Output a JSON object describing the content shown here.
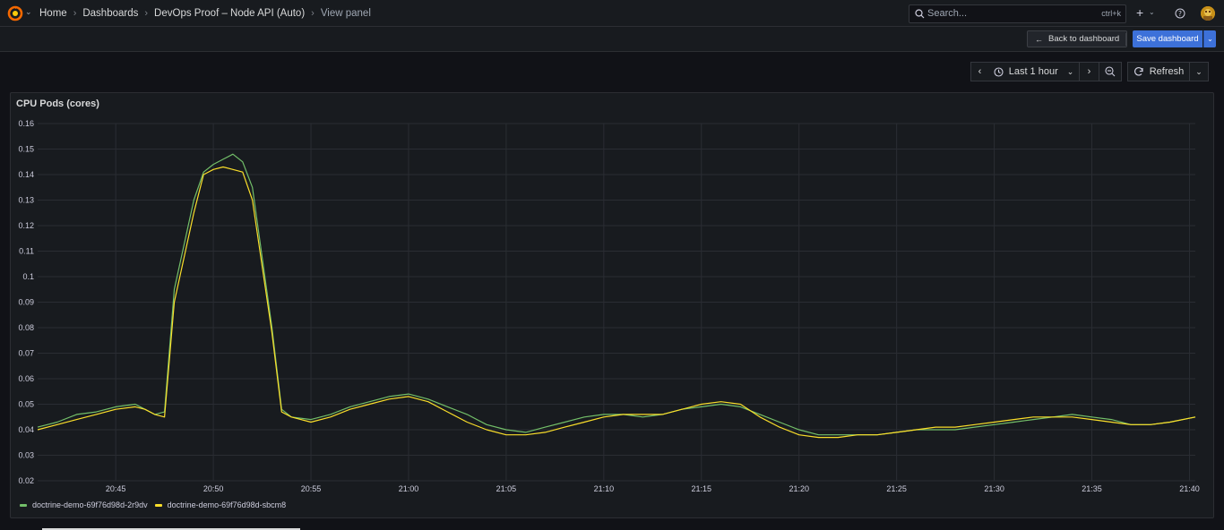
{
  "header": {
    "breadcrumbs": [
      {
        "label": "Home"
      },
      {
        "label": "Dashboards"
      },
      {
        "label": "DevOps Proof – Node API (Auto)"
      },
      {
        "label": "View panel"
      }
    ],
    "search_placeholder": "Search...",
    "search_shortcut": "ctrl+k",
    "add_label": "+"
  },
  "toolbar": {
    "back_label": "Back to dashboard",
    "save_label": "Save dashboard"
  },
  "timepicker": {
    "range_label": "Last 1 hour",
    "refresh_label": "Refresh"
  },
  "panel": {
    "title": "CPU Pods (cores)"
  },
  "colors": {
    "series_green": "#73bf69",
    "series_yellow": "#fade2a",
    "accent_blue": "#3d71d9"
  },
  "chart_data": {
    "type": "line",
    "title": "CPU Pods (cores)",
    "xlabel": "",
    "ylabel": "",
    "ylim": [
      0.02,
      0.16
    ],
    "y_ticks": [
      "0.02",
      "0.03",
      "0.04",
      "0.05",
      "0.06",
      "0.07",
      "0.08",
      "0.09",
      "0.1",
      "0.11",
      "0.12",
      "0.13",
      "0.14",
      "0.15",
      "0.16"
    ],
    "x_ticks": [
      "20:45",
      "20:50",
      "20:55",
      "21:00",
      "21:05",
      "21:10",
      "21:15",
      "21:20",
      "21:25",
      "21:30",
      "21:35",
      "21:40"
    ],
    "x_tick_minutes": [
      45,
      50,
      55,
      60,
      65,
      70,
      75,
      80,
      85,
      90,
      95,
      100
    ],
    "xlim_minutes": [
      41,
      100.3
    ],
    "x_unit_note": "minutes past 20:00",
    "grid": true,
    "legend_position": "bottom-left",
    "series": [
      {
        "name": "doctrine-demo-69f76d98d-2r9dv",
        "color": "#73bf69",
        "x": [
          41,
          41.5,
          42,
          43,
          44,
          45,
          46,
          46.5,
          47,
          47.5,
          48,
          49,
          49.5,
          50,
          50.5,
          51,
          51.5,
          52,
          53,
          53.5,
          54,
          55,
          56,
          57,
          58,
          59,
          60,
          61,
          62,
          63,
          64,
          65,
          66,
          67,
          68,
          69,
          70,
          71,
          72,
          73,
          74,
          75,
          76,
          77,
          78,
          79,
          80,
          81,
          82,
          83,
          84,
          85,
          86,
          87,
          88,
          89,
          90,
          91,
          92,
          93,
          94,
          95,
          96,
          97,
          98,
          99,
          100.3
        ],
        "values": [
          0.041,
          0.042,
          0.043,
          0.046,
          0.047,
          0.049,
          0.05,
          0.048,
          0.046,
          0.047,
          0.095,
          0.13,
          0.141,
          0.144,
          0.146,
          0.148,
          0.145,
          0.135,
          0.08,
          0.048,
          0.045,
          0.044,
          0.046,
          0.049,
          0.051,
          0.053,
          0.054,
          0.052,
          0.049,
          0.046,
          0.042,
          0.04,
          0.039,
          0.041,
          0.043,
          0.045,
          0.046,
          0.046,
          0.045,
          0.046,
          0.048,
          0.049,
          0.05,
          0.049,
          0.046,
          0.043,
          0.04,
          0.038,
          0.038,
          0.038,
          0.038,
          0.039,
          0.04,
          0.04,
          0.04,
          0.041,
          0.042,
          0.043,
          0.044,
          0.045,
          0.046,
          0.045,
          0.044,
          0.042,
          0.042,
          0.043,
          0.045
        ]
      },
      {
        "name": "doctrine-demo-69f76d98d-sbcm8",
        "color": "#fade2a",
        "x": [
          41,
          42,
          43,
          44,
          45,
          46,
          46.5,
          47,
          47.5,
          48,
          49,
          49.5,
          50,
          50.5,
          51,
          51.5,
          52,
          53,
          53.5,
          54,
          55,
          56,
          57,
          58,
          59,
          60,
          61,
          62,
          63,
          64,
          65,
          66,
          67,
          68,
          69,
          70,
          71,
          72,
          73,
          74,
          75,
          76,
          77,
          78,
          79,
          80,
          81,
          82,
          83,
          84,
          85,
          86,
          87,
          88,
          89,
          90,
          91,
          92,
          93,
          94,
          95,
          96,
          97,
          98,
          99,
          100.3
        ],
        "values": [
          0.04,
          0.042,
          0.044,
          0.046,
          0.048,
          0.049,
          0.048,
          0.046,
          0.045,
          0.09,
          0.125,
          0.14,
          0.142,
          0.143,
          0.142,
          0.141,
          0.13,
          0.078,
          0.047,
          0.045,
          0.043,
          0.045,
          0.048,
          0.05,
          0.052,
          0.053,
          0.051,
          0.047,
          0.043,
          0.04,
          0.038,
          0.038,
          0.039,
          0.041,
          0.043,
          0.045,
          0.046,
          0.046,
          0.046,
          0.048,
          0.05,
          0.051,
          0.05,
          0.045,
          0.041,
          0.038,
          0.037,
          0.037,
          0.038,
          0.038,
          0.039,
          0.04,
          0.041,
          0.041,
          0.042,
          0.043,
          0.044,
          0.045,
          0.045,
          0.045,
          0.044,
          0.043,
          0.042,
          0.042,
          0.043,
          0.045
        ]
      }
    ]
  }
}
